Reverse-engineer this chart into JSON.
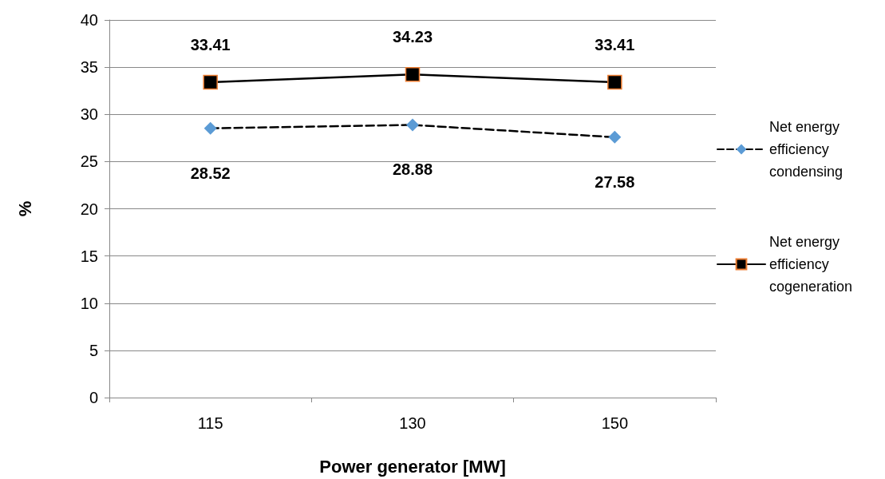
{
  "chart_data": {
    "type": "line",
    "xlabel": "Power generator [MW]",
    "ylabel": "%",
    "categories": [
      "115",
      "130",
      "150"
    ],
    "series": [
      {
        "name": "Net energy efficiency condensing",
        "color": "#5b9bd5",
        "values": [
          28.52,
          28.88,
          27.58
        ],
        "marker": "diamond",
        "line_style": "dashed"
      },
      {
        "name": "Net energy efficiency cogeneration",
        "color": "#000000",
        "values": [
          33.41,
          34.23,
          33.41
        ],
        "marker": "square",
        "line_style": "solid"
      }
    ],
    "ylim": [
      0,
      40
    ],
    "yticks": [
      0,
      5,
      10,
      15,
      20,
      25,
      30,
      35,
      40
    ],
    "grid": "y",
    "legend": "right",
    "data_labels": true
  }
}
